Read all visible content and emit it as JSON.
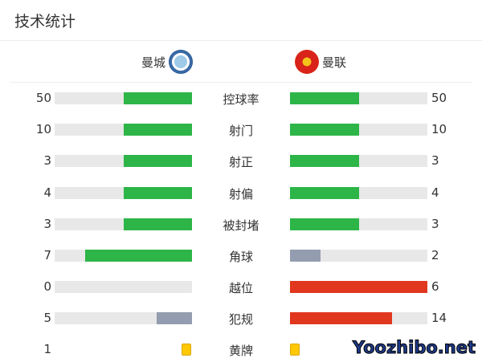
{
  "title": "技术统计",
  "home": {
    "name": "曼城",
    "logo": "man-city-crest"
  },
  "away": {
    "name": "曼联",
    "logo": "man-united-crest"
  },
  "colors": {
    "green": "#2db548",
    "red": "#e0371e",
    "gray": "#939daf",
    "track": "#e8e8e8",
    "card": "#ffc800"
  },
  "stats": [
    {
      "label": "控球率",
      "home": "50",
      "away": "50",
      "home_fill": 0.5,
      "away_fill": 0.5,
      "home_color": "green",
      "away_color": "green"
    },
    {
      "label": "射门",
      "home": "10",
      "away": "10",
      "home_fill": 0.5,
      "away_fill": 0.5,
      "home_color": "green",
      "away_color": "green"
    },
    {
      "label": "射正",
      "home": "3",
      "away": "3",
      "home_fill": 0.5,
      "away_fill": 0.5,
      "home_color": "green",
      "away_color": "green"
    },
    {
      "label": "射偏",
      "home": "4",
      "away": "4",
      "home_fill": 0.5,
      "away_fill": 0.5,
      "home_color": "green",
      "away_color": "green"
    },
    {
      "label": "被封堵",
      "home": "3",
      "away": "3",
      "home_fill": 0.5,
      "away_fill": 0.5,
      "home_color": "green",
      "away_color": "green"
    },
    {
      "label": "角球",
      "home": "7",
      "away": "2",
      "home_fill": 0.78,
      "away_fill": 0.22,
      "home_color": "green",
      "away_color": "gray"
    },
    {
      "label": "越位",
      "home": "0",
      "away": "6",
      "home_fill": 0,
      "away_fill": 1,
      "home_color": "gray",
      "away_color": "red"
    },
    {
      "label": "犯规",
      "home": "5",
      "away": "14",
      "home_fill": 0.26,
      "away_fill": 0.74,
      "home_color": "gray",
      "away_color": "red"
    }
  ],
  "yellow_cards": {
    "label": "黄牌",
    "home": "1",
    "away": ""
  },
  "watermark": "Yoozhibo.net"
}
